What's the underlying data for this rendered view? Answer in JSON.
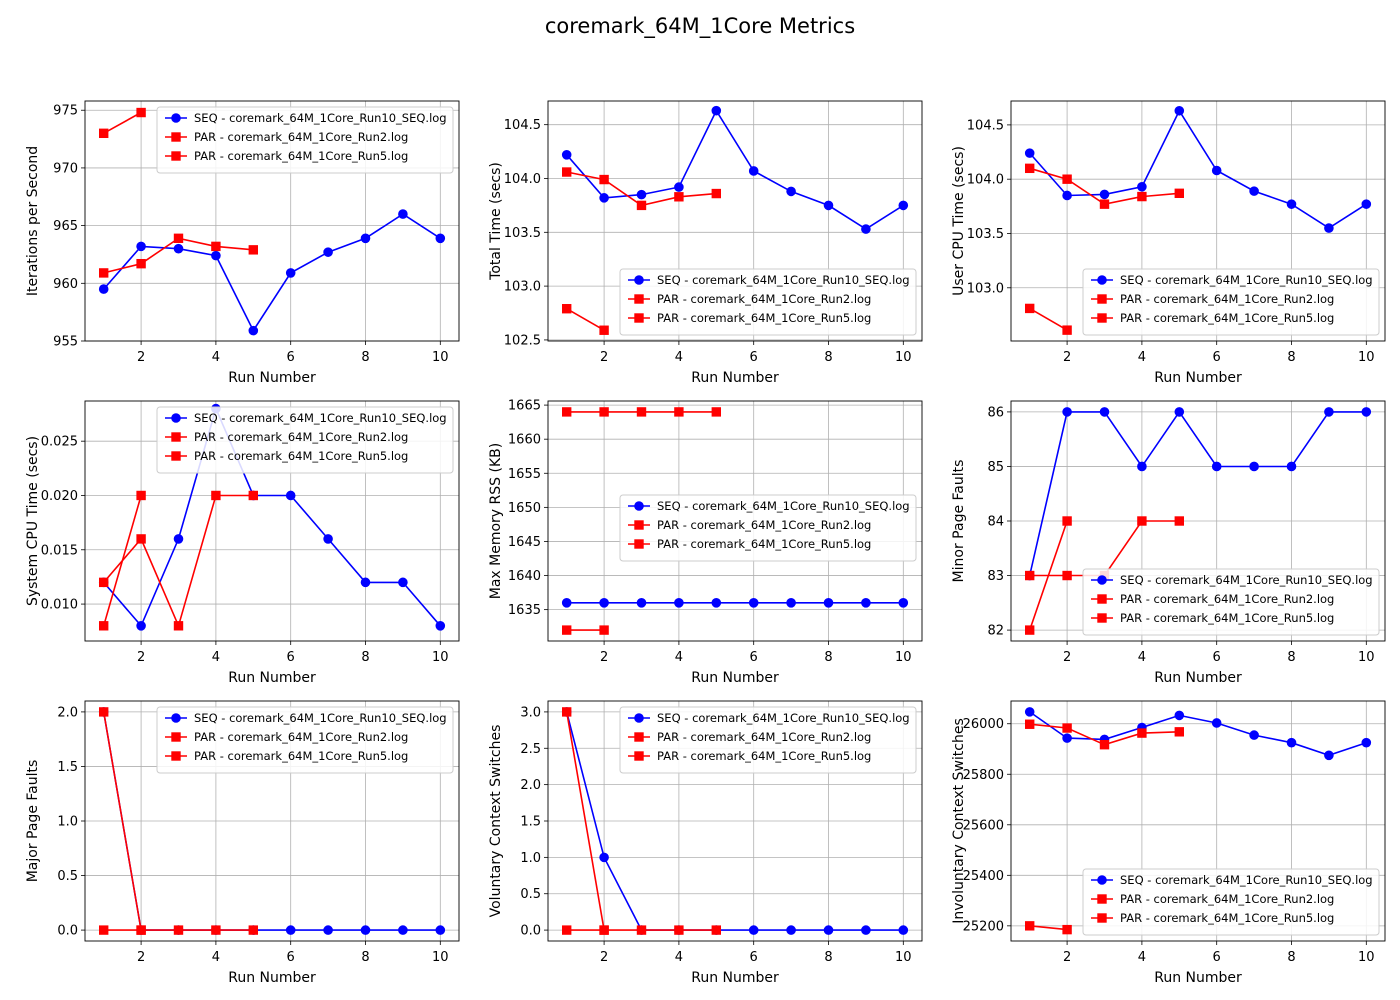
{
  "figure": {
    "title": "coremark_64M_1Core Metrics"
  },
  "colors": {
    "seq": "#0000ff",
    "par": "#ff0000",
    "grid": "#b0b0b0",
    "axis": "#000000"
  },
  "legend_labels": [
    "SEQ - coremark_64M_1Core_Run10_SEQ.log",
    "PAR - coremark_64M_1Core_Run2.log",
    "PAR - coremark_64M_1Core_Run5.log"
  ],
  "chart_data": [
    {
      "type": "line",
      "xlabel": "Run Number",
      "ylabel": "Iterations per Second",
      "xlim": [
        0.5,
        10.5
      ],
      "ylim": [
        955,
        975.8
      ],
      "xticks": [
        2,
        4,
        6,
        8,
        10
      ],
      "yticks": [
        955,
        960,
        965,
        970,
        975
      ],
      "grid": true,
      "legend_position": "upper right",
      "series": [
        {
          "name": "SEQ - coremark_64M_1Core_Run10_SEQ.log",
          "marker": "circle",
          "color": "#0000ff",
          "x": [
            1,
            2,
            3,
            4,
            5,
            6,
            7,
            8,
            9,
            10
          ],
          "y": [
            959.5,
            963.2,
            963.0,
            962.4,
            955.9,
            960.9,
            962.7,
            963.9,
            966.0,
            963.9
          ]
        },
        {
          "name": "PAR - coremark_64M_1Core_Run2.log",
          "marker": "square",
          "color": "#ff0000",
          "x": [
            1,
            2
          ],
          "y": [
            973.0,
            974.8
          ]
        },
        {
          "name": "PAR - coremark_64M_1Core_Run5.log",
          "marker": "square",
          "color": "#ff0000",
          "x": [
            1,
            2,
            3,
            4,
            5
          ],
          "y": [
            960.9,
            961.7,
            963.9,
            963.2,
            962.9
          ]
        }
      ]
    },
    {
      "type": "line",
      "xlabel": "Run Number",
      "ylabel": "Total Time (secs)",
      "xlim": [
        0.5,
        10.5
      ],
      "ylim": [
        102.49,
        104.72
      ],
      "xticks": [
        2,
        4,
        6,
        8,
        10
      ],
      "yticks": [
        102.5,
        103.0,
        103.5,
        104.0,
        104.5
      ],
      "grid": true,
      "legend_position": "lower right",
      "series": [
        {
          "name": "SEQ - coremark_64M_1Core_Run10_SEQ.log",
          "marker": "circle",
          "color": "#0000ff",
          "x": [
            1,
            2,
            3,
            4,
            5,
            6,
            7,
            8,
            9,
            10
          ],
          "y": [
            104.22,
            103.82,
            103.85,
            103.92,
            104.63,
            104.07,
            103.88,
            103.75,
            103.53,
            103.75
          ]
        },
        {
          "name": "PAR - coremark_64M_1Core_Run2.log",
          "marker": "square",
          "color": "#ff0000",
          "x": [
            1,
            2
          ],
          "y": [
            102.79,
            102.59
          ]
        },
        {
          "name": "PAR - coremark_64M_1Core_Run5.log",
          "marker": "square",
          "color": "#ff0000",
          "x": [
            1,
            2,
            3,
            4,
            5
          ],
          "y": [
            104.06,
            103.99,
            103.75,
            103.83,
            103.86
          ]
        }
      ]
    },
    {
      "type": "line",
      "xlabel": "Run Number",
      "ylabel": "User CPU Time (secs)",
      "xlim": [
        0.5,
        10.5
      ],
      "ylim": [
        102.51,
        104.72
      ],
      "xticks": [
        2,
        4,
        6,
        8,
        10
      ],
      "yticks": [
        103.0,
        103.5,
        104.0,
        104.5
      ],
      "grid": true,
      "legend_position": "lower right",
      "series": [
        {
          "name": "SEQ - coremark_64M_1Core_Run10_SEQ.log",
          "marker": "circle",
          "color": "#0000ff",
          "x": [
            1,
            2,
            3,
            4,
            5,
            6,
            7,
            8,
            9,
            10
          ],
          "y": [
            104.24,
            103.85,
            103.86,
            103.93,
            104.63,
            104.08,
            103.89,
            103.77,
            103.55,
            103.77
          ]
        },
        {
          "name": "PAR - coremark_64M_1Core_Run2.log",
          "marker": "square",
          "color": "#ff0000",
          "x": [
            1,
            2
          ],
          "y": [
            102.81,
            102.61
          ]
        },
        {
          "name": "PAR - coremark_64M_1Core_Run5.log",
          "marker": "square",
          "color": "#ff0000",
          "x": [
            1,
            2,
            3,
            4,
            5
          ],
          "y": [
            104.1,
            104.0,
            103.77,
            103.84,
            103.87
          ]
        }
      ]
    },
    {
      "type": "line",
      "xlabel": "Run Number",
      "ylabel": "System CPU Time (secs)",
      "xlim": [
        0.5,
        10.5
      ],
      "ylim": [
        0.0066,
        0.0287
      ],
      "xticks": [
        2,
        4,
        6,
        8,
        10
      ],
      "yticks": [
        0.01,
        0.015,
        0.02,
        0.025
      ],
      "grid": true,
      "legend_position": "upper right",
      "series": [
        {
          "name": "SEQ - coremark_64M_1Core_Run10_SEQ.log",
          "marker": "circle",
          "color": "#0000ff",
          "x": [
            1,
            2,
            3,
            4,
            5,
            6,
            7,
            8,
            9,
            10
          ],
          "y": [
            0.012,
            0.008,
            0.016,
            0.028,
            0.02,
            0.02,
            0.016,
            0.012,
            0.012,
            0.008
          ]
        },
        {
          "name": "PAR - coremark_64M_1Core_Run2.log",
          "marker": "square",
          "color": "#ff0000",
          "x": [
            1,
            2
          ],
          "y": [
            0.008,
            0.02
          ]
        },
        {
          "name": "PAR - coremark_64M_1Core_Run5.log",
          "marker": "square",
          "color": "#ff0000",
          "x": [
            1,
            2,
            3,
            4,
            5
          ],
          "y": [
            0.012,
            0.016,
            0.008,
            0.02,
            0.02
          ]
        }
      ]
    },
    {
      "type": "line",
      "xlabel": "Run Number",
      "ylabel": "Max Memory RSS (KB)",
      "xlim": [
        0.5,
        10.5
      ],
      "ylim": [
        1630.4,
        1665.6
      ],
      "xticks": [
        2,
        4,
        6,
        8,
        10
      ],
      "yticks": [
        1635,
        1640,
        1645,
        1650,
        1655,
        1660,
        1665
      ],
      "grid": true,
      "legend_position": "center right",
      "series": [
        {
          "name": "SEQ - coremark_64M_1Core_Run10_SEQ.log",
          "marker": "circle",
          "color": "#0000ff",
          "x": [
            1,
            2,
            3,
            4,
            5,
            6,
            7,
            8,
            9,
            10
          ],
          "y": [
            1636,
            1636,
            1636,
            1636,
            1636,
            1636,
            1636,
            1636,
            1636,
            1636
          ]
        },
        {
          "name": "PAR - coremark_64M_1Core_Run2.log",
          "marker": "square",
          "color": "#ff0000",
          "x": [
            1,
            2
          ],
          "y": [
            1632,
            1632
          ]
        },
        {
          "name": "PAR - coremark_64M_1Core_Run5.log",
          "marker": "square",
          "color": "#ff0000",
          "x": [
            1,
            2,
            3,
            4,
            5
          ],
          "y": [
            1664,
            1664,
            1664,
            1664,
            1664
          ]
        }
      ]
    },
    {
      "type": "line",
      "xlabel": "Run Number",
      "ylabel": "Minor Page Faults",
      "xlim": [
        0.5,
        10.5
      ],
      "ylim": [
        81.8,
        86.2
      ],
      "xticks": [
        2,
        4,
        6,
        8,
        10
      ],
      "yticks": [
        82,
        83,
        84,
        85,
        86
      ],
      "grid": true,
      "legend_position": "lower right",
      "series": [
        {
          "name": "SEQ - coremark_64M_1Core_Run10_SEQ.log",
          "marker": "circle",
          "color": "#0000ff",
          "x": [
            1,
            2,
            3,
            4,
            5,
            6,
            7,
            8,
            9,
            10
          ],
          "y": [
            83,
            86,
            86,
            85,
            86,
            85,
            85,
            85,
            86,
            86
          ]
        },
        {
          "name": "PAR - coremark_64M_1Core_Run2.log",
          "marker": "square",
          "color": "#ff0000",
          "x": [
            1,
            2
          ],
          "y": [
            82,
            84
          ]
        },
        {
          "name": "PAR - coremark_64M_1Core_Run5.log",
          "marker": "square",
          "color": "#ff0000",
          "x": [
            1,
            2,
            3,
            4,
            5
          ],
          "y": [
            83,
            83,
            83,
            84,
            84
          ]
        }
      ]
    },
    {
      "type": "line",
      "xlabel": "Run Number",
      "ylabel": "Major Page Faults",
      "xlim": [
        0.5,
        10.5
      ],
      "ylim": [
        -0.1,
        2.1
      ],
      "xticks": [
        2,
        4,
        6,
        8,
        10
      ],
      "yticks": [
        0.0,
        0.5,
        1.0,
        1.5,
        2.0
      ],
      "grid": true,
      "legend_position": "upper right",
      "series": [
        {
          "name": "SEQ - coremark_64M_1Core_Run10_SEQ.log",
          "marker": "circle",
          "color": "#0000ff",
          "x": [
            1,
            2,
            3,
            4,
            5,
            6,
            7,
            8,
            9,
            10
          ],
          "y": [
            2,
            0,
            0,
            0,
            0,
            0,
            0,
            0,
            0,
            0
          ]
        },
        {
          "name": "PAR - coremark_64M_1Core_Run2.log",
          "marker": "square",
          "color": "#ff0000",
          "x": [
            1,
            2
          ],
          "y": [
            2,
            0
          ]
        },
        {
          "name": "PAR - coremark_64M_1Core_Run5.log",
          "marker": "square",
          "color": "#ff0000",
          "x": [
            1,
            2,
            3,
            4,
            5
          ],
          "y": [
            0,
            0,
            0,
            0,
            0
          ]
        }
      ]
    },
    {
      "type": "line",
      "xlabel": "Run Number",
      "ylabel": "Voluntary Context Switches",
      "xlim": [
        0.5,
        10.5
      ],
      "ylim": [
        -0.15,
        3.15
      ],
      "xticks": [
        2,
        4,
        6,
        8,
        10
      ],
      "yticks": [
        0.0,
        0.5,
        1.0,
        1.5,
        2.0,
        2.5,
        3.0
      ],
      "grid": true,
      "legend_position": "upper right",
      "series": [
        {
          "name": "SEQ - coremark_64M_1Core_Run10_SEQ.log",
          "marker": "circle",
          "color": "#0000ff",
          "x": [
            1,
            2,
            3,
            4,
            5,
            6,
            7,
            8,
            9,
            10
          ],
          "y": [
            3,
            1,
            0,
            0,
            0,
            0,
            0,
            0,
            0,
            0
          ]
        },
        {
          "name": "PAR - coremark_64M_1Core_Run2.log",
          "marker": "square",
          "color": "#ff0000",
          "x": [
            1,
            2
          ],
          "y": [
            3,
            0
          ]
        },
        {
          "name": "PAR - coremark_64M_1Core_Run5.log",
          "marker": "square",
          "color": "#ff0000",
          "x": [
            1,
            2,
            3,
            4,
            5
          ],
          "y": [
            0,
            0,
            0,
            0,
            0
          ]
        }
      ]
    },
    {
      "type": "line",
      "xlabel": "Run Number",
      "ylabel": "Involuntary Context Switches",
      "xlim": [
        0.5,
        10.5
      ],
      "ylim": [
        25140,
        26090
      ],
      "xticks": [
        2,
        4,
        6,
        8,
        10
      ],
      "yticks": [
        25200,
        25400,
        25600,
        25800,
        26000
      ],
      "grid": true,
      "legend_position": "lower right",
      "series": [
        {
          "name": "SEQ - coremark_64M_1Core_Run10_SEQ.log",
          "marker": "circle",
          "color": "#0000ff",
          "x": [
            1,
            2,
            3,
            4,
            5,
            6,
            7,
            8,
            9,
            10
          ],
          "y": [
            26047,
            25943,
            25938,
            25985,
            26033,
            26003,
            25955,
            25925,
            25875,
            25925
          ]
        },
        {
          "name": "PAR - coremark_64M_1Core_Run2.log",
          "marker": "square",
          "color": "#ff0000",
          "x": [
            1,
            2
          ],
          "y": [
            25200,
            25185
          ]
        },
        {
          "name": "PAR - coremark_64M_1Core_Run5.log",
          "marker": "square",
          "color": "#ff0000",
          "x": [
            1,
            2,
            3,
            4,
            5
          ],
          "y": [
            25998,
            25983,
            25917,
            25963,
            25968
          ]
        }
      ]
    }
  ]
}
